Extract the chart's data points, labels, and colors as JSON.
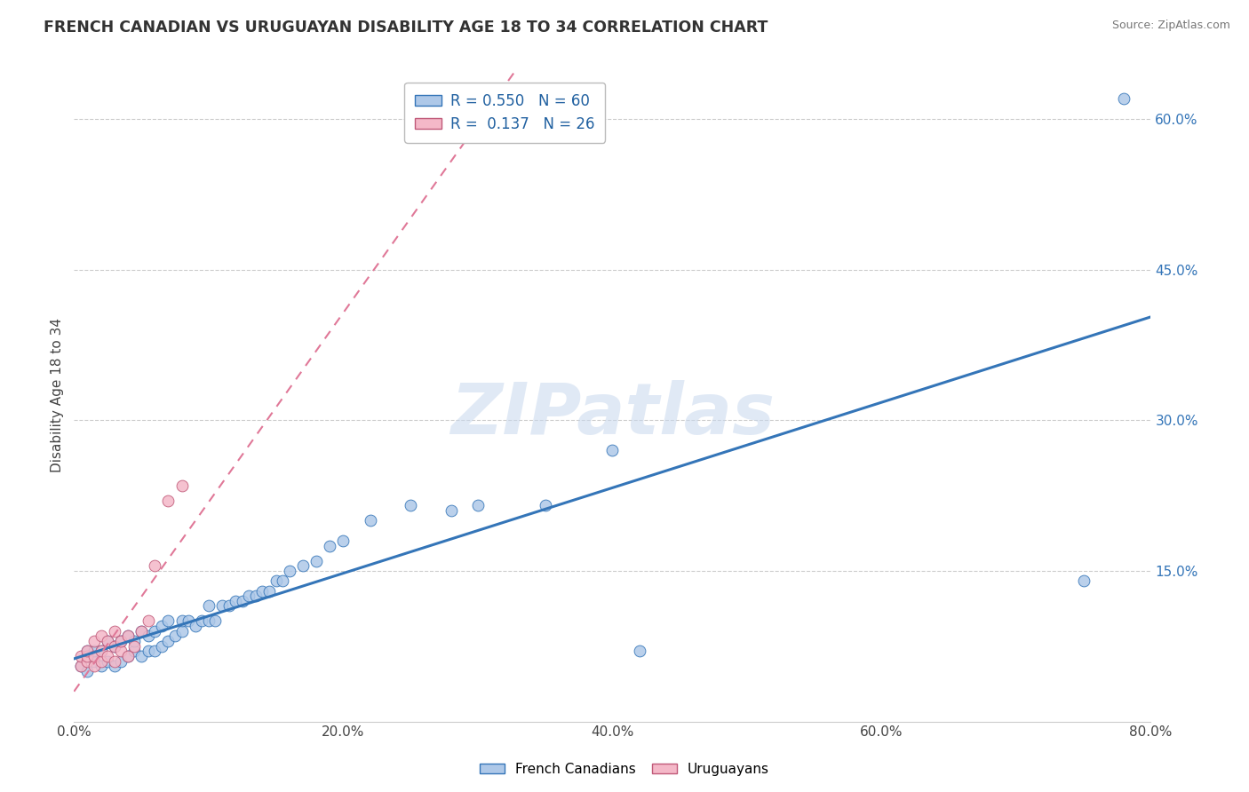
{
  "title": "FRENCH CANADIAN VS URUGUAYAN DISABILITY AGE 18 TO 34 CORRELATION CHART",
  "source": "Source: ZipAtlas.com",
  "ylabel": "Disability Age 18 to 34",
  "xlim": [
    0.0,
    0.8
  ],
  "ylim": [
    0.0,
    0.65
  ],
  "xticks": [
    0.0,
    0.2,
    0.4,
    0.6,
    0.8
  ],
  "right_yticks": [
    0.0,
    0.15,
    0.3,
    0.45,
    0.6
  ],
  "right_yticklabels": [
    "",
    "15.0%",
    "30.0%",
    "45.0%",
    "60.0%"
  ],
  "R_blue": 0.55,
  "N_blue": 60,
  "R_pink": 0.137,
  "N_pink": 26,
  "blue_color": "#aec8e8",
  "pink_color": "#f4b8c8",
  "blue_line_color": "#3475b8",
  "pink_line_color": "#e07898",
  "title_color": "#333333",
  "watermark": "ZIPatlas",
  "legend_label_blue": "French Canadians",
  "legend_label_pink": "Uruguayans",
  "blue_x": [
    0.005,
    0.01,
    0.01,
    0.015,
    0.015,
    0.02,
    0.02,
    0.025,
    0.025,
    0.03,
    0.03,
    0.035,
    0.035,
    0.04,
    0.04,
    0.045,
    0.045,
    0.05,
    0.05,
    0.055,
    0.055,
    0.06,
    0.06,
    0.065,
    0.065,
    0.07,
    0.07,
    0.075,
    0.08,
    0.08,
    0.085,
    0.09,
    0.095,
    0.1,
    0.1,
    0.105,
    0.11,
    0.115,
    0.12,
    0.125,
    0.13,
    0.135,
    0.14,
    0.145,
    0.15,
    0.155,
    0.16,
    0.17,
    0.18,
    0.19,
    0.2,
    0.22,
    0.25,
    0.28,
    0.3,
    0.35,
    0.4,
    0.42,
    0.75,
    0.78
  ],
  "blue_y": [
    0.055,
    0.05,
    0.07,
    0.06,
    0.07,
    0.055,
    0.07,
    0.06,
    0.08,
    0.055,
    0.075,
    0.06,
    0.08,
    0.065,
    0.085,
    0.07,
    0.08,
    0.065,
    0.09,
    0.07,
    0.085,
    0.07,
    0.09,
    0.075,
    0.095,
    0.08,
    0.1,
    0.085,
    0.09,
    0.1,
    0.1,
    0.095,
    0.1,
    0.1,
    0.115,
    0.1,
    0.115,
    0.115,
    0.12,
    0.12,
    0.125,
    0.125,
    0.13,
    0.13,
    0.14,
    0.14,
    0.15,
    0.155,
    0.16,
    0.175,
    0.18,
    0.2,
    0.215,
    0.21,
    0.215,
    0.215,
    0.27,
    0.07,
    0.14,
    0.62
  ],
  "pink_x": [
    0.005,
    0.005,
    0.01,
    0.01,
    0.01,
    0.015,
    0.015,
    0.015,
    0.02,
    0.02,
    0.02,
    0.025,
    0.025,
    0.03,
    0.03,
    0.03,
    0.035,
    0.035,
    0.04,
    0.04,
    0.045,
    0.05,
    0.055,
    0.06,
    0.07,
    0.08
  ],
  "pink_y": [
    0.055,
    0.065,
    0.06,
    0.065,
    0.07,
    0.055,
    0.065,
    0.08,
    0.06,
    0.07,
    0.085,
    0.065,
    0.08,
    0.06,
    0.075,
    0.09,
    0.07,
    0.08,
    0.065,
    0.085,
    0.075,
    0.09,
    0.1,
    0.155,
    0.22,
    0.235
  ]
}
